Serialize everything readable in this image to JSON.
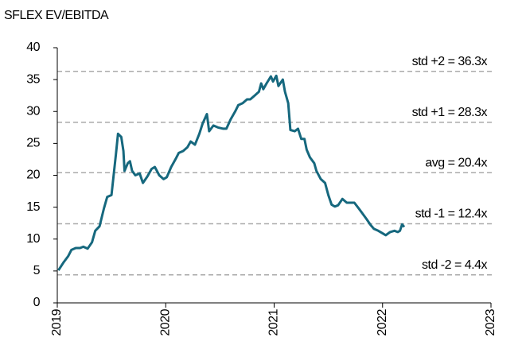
{
  "chart_data": {
    "type": "line",
    "title": "SFLEX EV/EBITDA",
    "x": [
      2019.01,
      2019.06,
      2019.1,
      2019.13,
      2019.17,
      2019.21,
      2019.24,
      2019.28,
      2019.32,
      2019.35,
      2019.39,
      2019.43,
      2019.46,
      2019.5,
      2019.52,
      2019.54,
      2019.56,
      2019.59,
      2019.61,
      2019.62,
      2019.65,
      2019.67,
      2019.69,
      2019.72,
      2019.76,
      2019.79,
      2019.83,
      2019.87,
      2019.9,
      2019.94,
      2019.98,
      2020.01,
      2020.05,
      2020.09,
      2020.12,
      2020.16,
      2020.2,
      2020.23,
      2020.27,
      2020.31,
      2020.34,
      2020.38,
      2020.4,
      2020.44,
      2020.48,
      2020.53,
      2020.56,
      2020.6,
      2020.64,
      2020.67,
      2020.71,
      2020.75,
      2020.78,
      2020.82,
      2020.86,
      2020.88,
      2020.9,
      2020.93,
      2020.97,
      2020.99,
      2021.02,
      2021.04,
      2021.08,
      2021.1,
      2021.13,
      2021.15,
      2021.19,
      2021.22,
      2021.25,
      2021.28,
      2021.3,
      2021.33,
      2021.37,
      2021.39,
      2021.43,
      2021.47,
      2021.5,
      2021.53,
      2021.56,
      2021.59,
      2021.63,
      2021.67,
      2021.7,
      2021.74,
      2021.78,
      2021.81,
      2021.85,
      2021.89,
      2021.92,
      2021.96,
      2021.99,
      2022.03,
      2022.07,
      2022.11,
      2022.14,
      2022.16,
      2022.18,
      2022.2
    ],
    "series": [
      {
        "name": "EV/EBITDA",
        "color": "#16687e",
        "values": [
          5.1,
          6.4,
          7.3,
          8.3,
          8.6,
          8.6,
          8.8,
          8.5,
          9.5,
          11.3,
          12.0,
          14.8,
          16.6,
          16.9,
          20.0,
          23.2,
          26.5,
          26.0,
          23.8,
          20.7,
          21.9,
          22.2,
          20.7,
          20.0,
          20.3,
          18.8,
          19.8,
          21.0,
          21.3,
          20.0,
          19.4,
          19.7,
          21.3,
          22.5,
          23.5,
          23.8,
          24.4,
          25.3,
          24.8,
          26.5,
          28.1,
          29.6,
          26.9,
          27.8,
          27.5,
          27.3,
          27.3,
          28.8,
          30.0,
          31.0,
          31.3,
          31.9,
          31.9,
          32.5,
          33.1,
          34.4,
          33.5,
          34.4,
          35.5,
          34.7,
          35.6,
          34.0,
          35.0,
          33.1,
          31.3,
          27.1,
          26.9,
          27.3,
          25.7,
          25.7,
          24.0,
          22.8,
          21.9,
          20.7,
          19.4,
          18.8,
          16.9,
          15.4,
          15.1,
          15.3,
          16.3,
          15.7,
          15.7,
          15.7,
          14.8,
          14.1,
          13.2,
          12.2,
          11.6,
          11.3,
          11.0,
          10.6,
          11.1,
          11.3,
          11.1,
          11.3,
          12.3,
          11.9
        ]
      }
    ],
    "reference_lines": [
      {
        "label": "std +2 = 36.3x",
        "value": 36.3
      },
      {
        "label": "std +1 = 28.3x",
        "value": 28.3
      },
      {
        "label": "avg = 20.4x",
        "value": 20.4
      },
      {
        "label": "std -1 = 12.4x",
        "value": 12.4
      },
      {
        "label": "std -2 = 4.4x",
        "value": 4.4
      }
    ],
    "xlim": [
      2019,
      2023
    ],
    "xticks": [
      2019,
      2020,
      2021,
      2022,
      2023
    ],
    "ylim": [
      0,
      40
    ],
    "yticks": [
      0,
      5,
      10,
      15,
      20,
      25,
      30,
      35,
      40
    ]
  }
}
